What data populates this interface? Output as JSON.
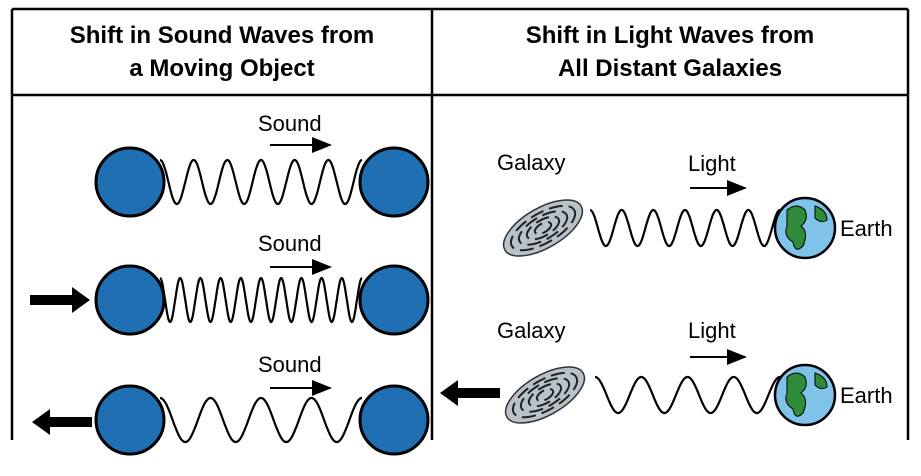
{
  "columns": [
    {
      "title_lines": [
        "Shift in Sound Waves from",
        "a Moving Object"
      ],
      "rows": [
        {
          "label": "Sound"
        },
        {
          "label": "Sound"
        },
        {
          "label": "Sound"
        }
      ]
    },
    {
      "title_lines": [
        "Shift in Light Waves from",
        "All Distant Galaxies"
      ],
      "rows": [
        {
          "source": "Galaxy",
          "label": "Light",
          "target": "Earth"
        },
        {
          "source": "Galaxy",
          "label": "Light",
          "target": "Earth"
        }
      ]
    }
  ]
}
